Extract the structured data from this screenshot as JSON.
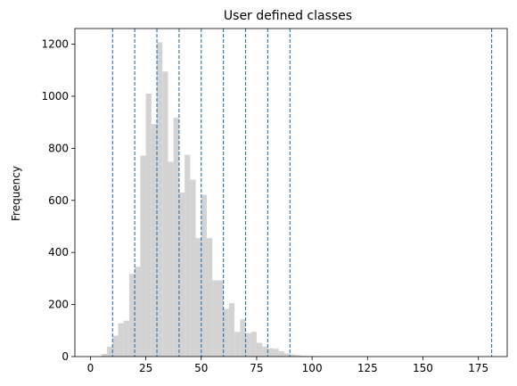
{
  "chart_data": {
    "type": "bar",
    "title": "User defined classes",
    "xlabel": "",
    "ylabel": "Frequency",
    "xlim": [
      -7,
      188
    ],
    "ylim": [
      0,
      1260
    ],
    "x_ticks": [
      0,
      25,
      50,
      75,
      100,
      125,
      150,
      175
    ],
    "y_ticks": [
      0,
      200,
      400,
      600,
      800,
      1000,
      1200
    ],
    "grid": false,
    "bar_color": "#d3d3d3",
    "line_color": "#1f77b4",
    "bin_width": 2.5,
    "bin_starts": [
      5,
      7.5,
      10,
      12.5,
      15,
      17.5,
      20,
      22.5,
      25,
      27.5,
      30,
      32.5,
      35,
      37.5,
      40,
      42.5,
      45,
      47.5,
      50,
      52.5,
      55,
      57.5,
      60,
      62.5,
      65,
      67.5,
      70,
      72.5,
      75,
      77.5,
      80,
      82.5,
      85,
      87.5,
      90,
      92.5,
      95,
      97.5,
      100,
      102.5,
      105,
      107.5,
      110,
      112.5,
      115,
      117.5,
      120,
      122.5,
      125,
      127.5,
      130,
      132.5,
      135,
      137.5,
      140,
      142.5,
      145
    ],
    "frequencies": [
      10,
      38,
      80,
      128,
      138,
      318,
      345,
      772,
      1010,
      893,
      1207,
      1095,
      748,
      917,
      630,
      775,
      680,
      455,
      622,
      455,
      293,
      293,
      183,
      205,
      95,
      143,
      90,
      95,
      53,
      38,
      32,
      30,
      20,
      12,
      8,
      5,
      3,
      2,
      1,
      1,
      0,
      0,
      0,
      0,
      0,
      0,
      0,
      0,
      0,
      0,
      0,
      0,
      0,
      0,
      0,
      0,
      0
    ],
    "class_breaks": [
      10,
      20,
      30,
      40,
      50,
      60,
      70,
      80,
      90,
      181
    ]
  }
}
